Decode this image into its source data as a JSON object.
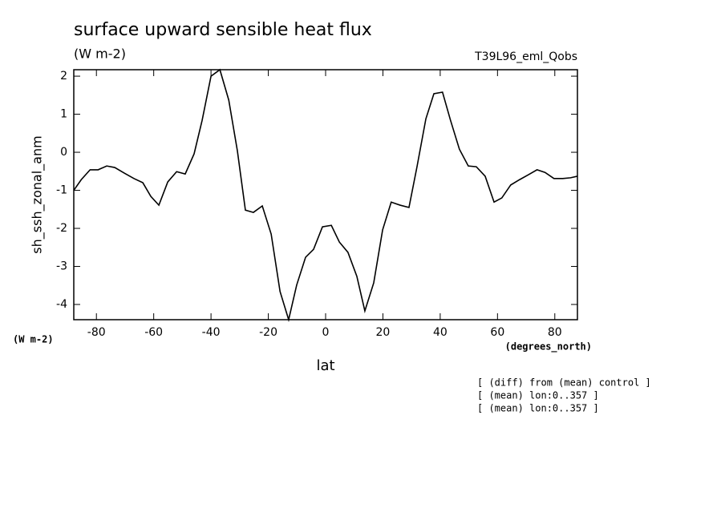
{
  "chart_data": {
    "type": "line",
    "title": "surface upward sensible heat flux",
    "subtitle": "(W m-2)",
    "dataset_label": "T39L96_eml_Qobs",
    "ylabel": "sh_ssh_zonal_anm",
    "y_units": "(W m-2)",
    "x_units": "(degrees_north)",
    "xlabel": "lat",
    "notes": [
      "[ (diff) from (mean) control ]",
      "[ (mean) lon:0..357 ]",
      "[ (mean) lon:0..357 ]"
    ],
    "color": "#000000",
    "x": [
      -87.9,
      -85.3,
      -82.2,
      -79.4,
      -76.4,
      -73.6,
      -70.2,
      -66.9,
      -63.8,
      -61.0,
      -58.2,
      -55.1,
      -52.0,
      -49.0,
      -45.9,
      -43.1,
      -40.0,
      -36.9,
      -33.8,
      -30.8,
      -28.0,
      -25.2,
      -22.1,
      -19.0,
      -15.9,
      -12.9,
      -10.1,
      -7.0,
      -4.2,
      -1.1,
      2.0,
      4.8,
      7.8,
      10.9,
      13.7,
      16.8,
      19.9,
      22.9,
      26.0,
      29.1,
      31.9,
      35.0,
      37.8,
      40.8,
      43.6,
      46.7,
      49.8,
      52.6,
      55.7,
      58.8,
      61.5,
      64.6,
      67.7,
      70.8,
      73.8,
      76.6,
      79.7,
      82.8,
      85.5,
      87.9
    ],
    "values": [
      -1.0,
      -0.72,
      -0.46,
      -0.46,
      -0.36,
      -0.4,
      -0.55,
      -0.69,
      -0.8,
      -1.16,
      -1.39,
      -0.78,
      -0.51,
      -0.57,
      -0.04,
      0.84,
      2.0,
      2.17,
      1.37,
      0.04,
      -1.52,
      -1.58,
      -1.41,
      -2.15,
      -3.66,
      -4.4,
      -3.49,
      -2.76,
      -2.55,
      -1.96,
      -1.92,
      -2.36,
      -2.63,
      -3.26,
      -4.17,
      -3.43,
      -2.04,
      -1.31,
      -1.39,
      -1.45,
      -0.38,
      0.88,
      1.54,
      1.58,
      0.84,
      0.08,
      -0.36,
      -0.38,
      -0.63,
      -1.31,
      -1.2,
      -0.86,
      -0.72,
      -0.59,
      -0.46,
      -0.53,
      -0.69,
      -0.69,
      -0.67,
      -0.63
    ],
    "xlim": [
      -87.9,
      87.9
    ],
    "ylim": [
      -4.4,
      2.17
    ],
    "xticks": [
      -80,
      -60,
      -40,
      -20,
      0,
      20,
      40,
      60,
      80
    ],
    "yticks": [
      -4,
      -3,
      -2,
      -1,
      0,
      1,
      2
    ]
  }
}
